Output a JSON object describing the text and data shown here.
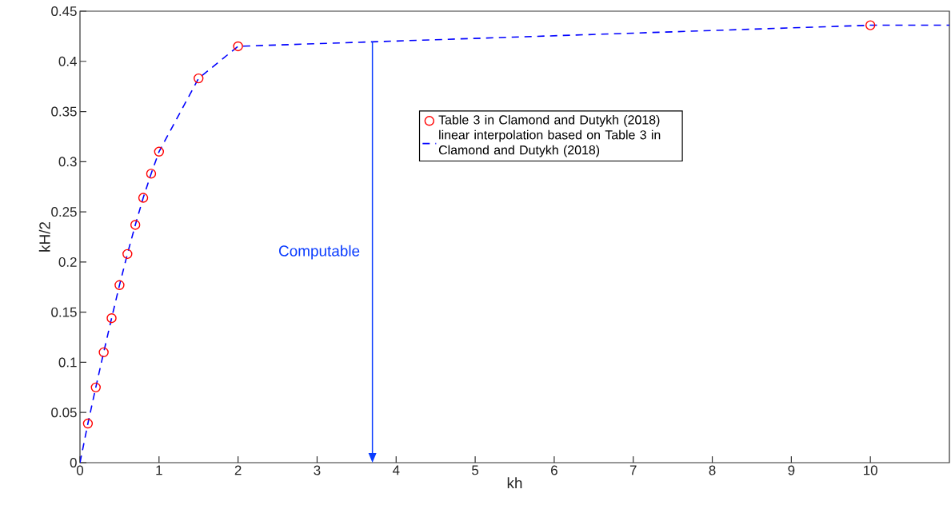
{
  "chart_data": {
    "type": "scatter",
    "xlabel": "kh",
    "ylabel": "kH/2",
    "xlim": [
      0,
      11
    ],
    "ylim": [
      0,
      0.45
    ],
    "xticks": [
      0,
      1,
      2,
      3,
      4,
      5,
      6,
      7,
      8,
      9,
      10
    ],
    "yticks": [
      0,
      0.05,
      0.1,
      0.15,
      0.2,
      0.25,
      0.3,
      0.35,
      0.4,
      0.45
    ],
    "legend": "right",
    "grid": false,
    "ref_lines": [
      {
        "axis": "x",
        "value": 3.7,
        "label": "Computable",
        "color": "#0a3cff"
      }
    ],
    "series": [
      {
        "name": "Table 3 in Clamond and Dutykh (2018)",
        "color": "#ff0000",
        "marker": "circle",
        "x": [
          0.1,
          0.2,
          0.3,
          0.4,
          0.5,
          0.6,
          0.7,
          0.8,
          0.9,
          1,
          1.5,
          2,
          10
        ],
        "values": [
          0.039,
          0.075,
          0.11,
          0.144,
          0.177,
          0.208,
          0.237,
          0.264,
          0.288,
          0.31,
          0.383,
          0.415,
          0.436
        ]
      },
      {
        "name": "linear interpolation based on Table 3 in Clamond and Dutykh (2018)",
        "type": "line",
        "color": "#0000ff",
        "line_style": "dashed",
        "marker": "none",
        "x": [
          0,
          0.1,
          0.2,
          0.3,
          0.4,
          0.5,
          0.6,
          0.7,
          0.8,
          0.9,
          1,
          1.5,
          2,
          10,
          11
        ],
        "values": [
          0,
          0.039,
          0.075,
          0.11,
          0.144,
          0.177,
          0.208,
          0.237,
          0.264,
          0.288,
          0.31,
          0.383,
          0.415,
          0.436,
          0.436
        ]
      }
    ]
  }
}
